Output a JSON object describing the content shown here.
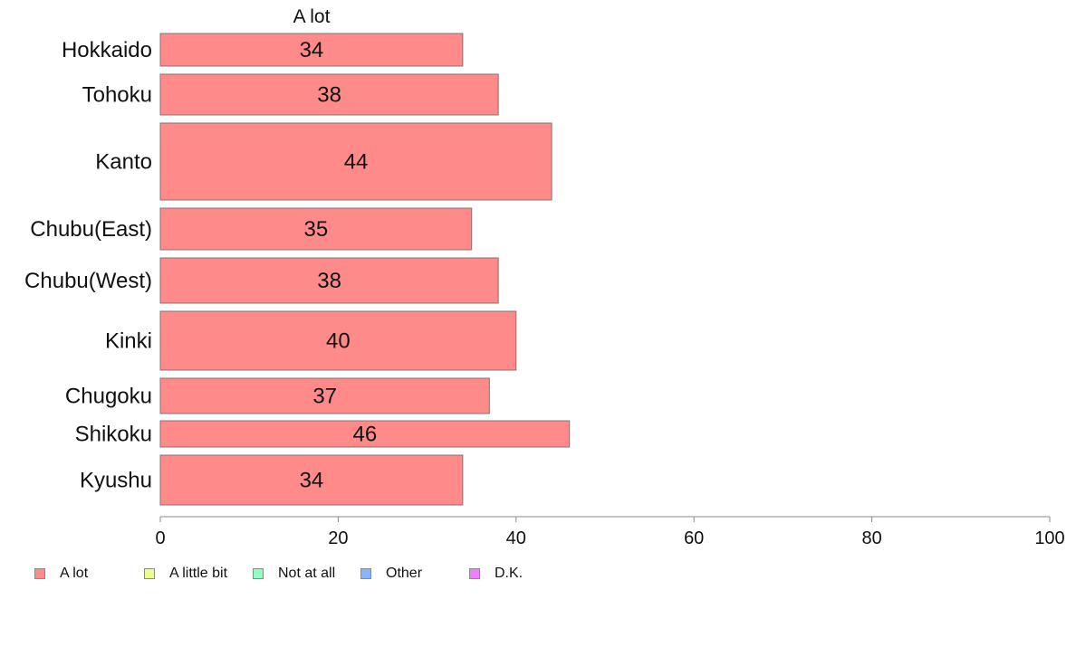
{
  "chart_data": {
    "type": "bar",
    "orientation": "horizontal",
    "stacked": true,
    "title": "A lot",
    "categories": [
      "Hokkaido",
      "Tohoku",
      "Kanto",
      "Chubu(East)",
      "Chubu(West)",
      "Kinki",
      "Chugoku",
      "Shikoku",
      "Kyushu"
    ],
    "series": [
      {
        "name": "A lot",
        "color": "#ff8a8a",
        "values": [
          34,
          38,
          44,
          35,
          38,
          40,
          37,
          46,
          34
        ]
      }
    ],
    "legend": [
      {
        "label": "A lot",
        "color": "#ff8a8a"
      },
      {
        "label": "A little bit",
        "color": "#eaff8e"
      },
      {
        "label": "Not at all",
        "color": "#8effc0"
      },
      {
        "label": "Other",
        "color": "#8ab4ff"
      },
      {
        "label": "D.K.",
        "color": "#ee80ff"
      }
    ],
    "xlim": [
      0,
      100
    ],
    "xticks": [
      0,
      20,
      40,
      60,
      80,
      100
    ],
    "grid": false,
    "legend_position": "bottom-left"
  }
}
